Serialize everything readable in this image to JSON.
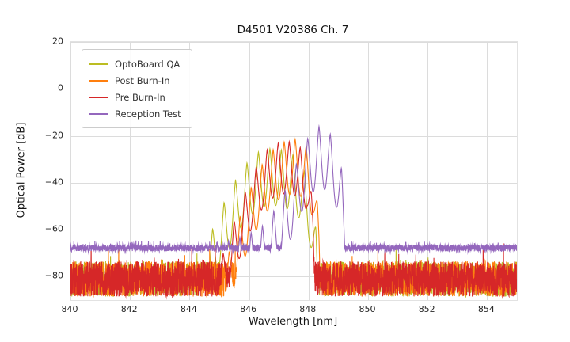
{
  "chart_data": {
    "type": "line",
    "title": "D4501 V20386 Ch. 7",
    "xlabel": "Wavelength [nm]",
    "ylabel": "Optical Power [dB]",
    "xlim": [
      840,
      855
    ],
    "ylim": [
      -90,
      20
    ],
    "xticks": [
      840,
      842,
      844,
      846,
      848,
      850,
      852,
      854
    ],
    "yticks": [
      20,
      0,
      -20,
      -40,
      -60,
      -80
    ],
    "grid": true,
    "grid_color": "#dcdcdc",
    "legend_position": "upper-left",
    "series": [
      {
        "name": "OptoBoard QA",
        "color": "#bcbd22",
        "noise": {
          "mean": -81,
          "spread": 7.5,
          "spike_prob": 0.02,
          "spike_db": 9
        },
        "envelope": [
          [
            844.3,
            -78
          ],
          [
            844.7,
            -62
          ],
          [
            845.1,
            -50
          ],
          [
            845.5,
            -40
          ],
          [
            845.9,
            -32
          ],
          [
            846.3,
            -27
          ],
          [
            846.7,
            -25.5
          ],
          [
            847.1,
            -26
          ],
          [
            847.5,
            -28.5
          ],
          [
            847.8,
            -33
          ],
          [
            848.05,
            -42
          ],
          [
            848.25,
            -60
          ],
          [
            848.35,
            -85
          ]
        ],
        "mode_phase_nm": 846.7,
        "mode_spacing_nm": 0.385,
        "mode_depth_db": 24
      },
      {
        "name": "Post Burn-In",
        "color": "#ff7f0e",
        "noise": {
          "mean": -81,
          "spread": 7.5,
          "spike_prob": 0.02,
          "spike_db": 9
        },
        "envelope": [
          [
            845.2,
            -75
          ],
          [
            845.6,
            -58
          ],
          [
            846.0,
            -44
          ],
          [
            846.4,
            -33
          ],
          [
            846.8,
            -26
          ],
          [
            847.2,
            -22.5
          ],
          [
            847.55,
            -21.5
          ],
          [
            847.9,
            -24
          ],
          [
            848.15,
            -32
          ],
          [
            848.35,
            -55
          ],
          [
            848.45,
            -85
          ]
        ],
        "mode_phase_nm": 847.55,
        "mode_spacing_nm": 0.37,
        "mode_depth_db": 23
      },
      {
        "name": "Pre Burn-In",
        "color": "#d62728",
        "noise": {
          "mean": -81,
          "spread": 7.5,
          "spike_prob": 0.02,
          "spike_db": 9
        },
        "envelope": [
          [
            845.0,
            -75
          ],
          [
            845.4,
            -60
          ],
          [
            845.8,
            -46
          ],
          [
            846.2,
            -34
          ],
          [
            846.6,
            -26
          ],
          [
            847.0,
            -23
          ],
          [
            847.35,
            -22.5
          ],
          [
            847.7,
            -24.5
          ],
          [
            847.95,
            -30
          ],
          [
            848.15,
            -50
          ],
          [
            848.25,
            -85
          ]
        ],
        "mode_phase_nm": 847.35,
        "mode_spacing_nm": 0.37,
        "mode_depth_db": 22
      },
      {
        "name": "Reception Test",
        "color": "#9467bd",
        "noise": {
          "mean": -67.8,
          "spread": 1.4,
          "spike_prob": 0.05,
          "spike_db": 2
        },
        "envelope": [
          [
            844.5,
            -66.5
          ],
          [
            845.2,
            -65
          ],
          [
            845.9,
            -62.5
          ],
          [
            846.5,
            -58
          ],
          [
            847.0,
            -49
          ],
          [
            847.4,
            -38
          ],
          [
            847.75,
            -27
          ],
          [
            848.05,
            -19
          ],
          [
            848.35,
            -16
          ],
          [
            848.65,
            -17.5
          ],
          [
            848.9,
            -23
          ],
          [
            849.1,
            -33
          ],
          [
            849.25,
            -55
          ],
          [
            849.35,
            -68
          ]
        ],
        "mode_phase_nm": 848.35,
        "mode_spacing_nm": 0.38,
        "mode_depth_db": 26
      }
    ]
  }
}
